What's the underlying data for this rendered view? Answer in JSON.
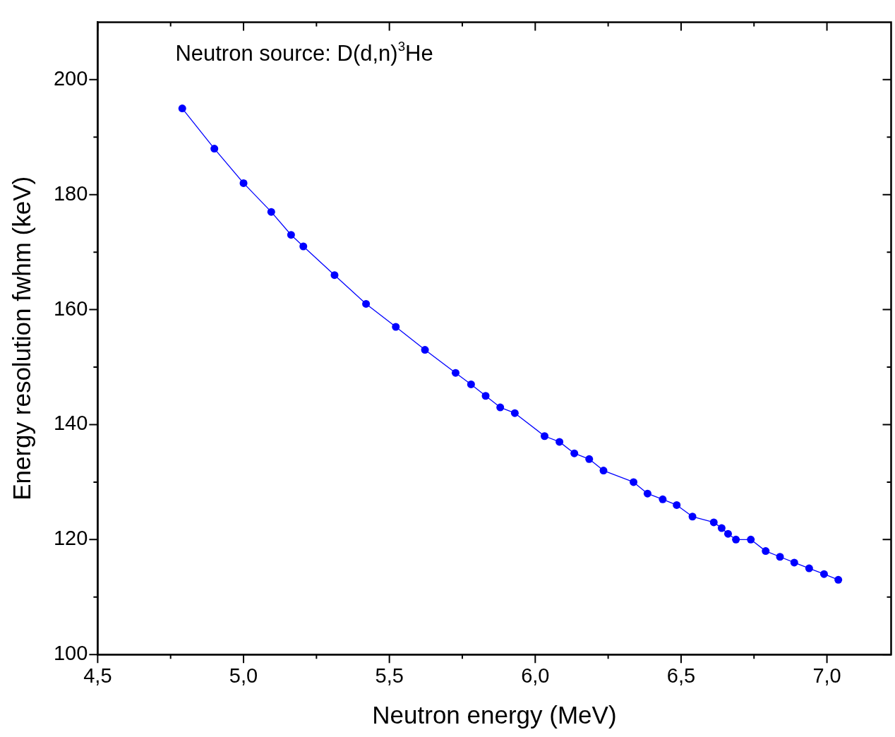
{
  "chart_data": {
    "type": "line",
    "xlabel": "Neutron energy (MeV)",
    "ylabel": "Energy resolution fwhm (keV)",
    "annotations": [
      "Neutron source: D(d,n)$^{3}$He"
    ],
    "xlim": [
      4.5,
      7.22
    ],
    "xticks": [
      {
        "value": 4.5,
        "label": "4,5"
      },
      {
        "value": 4.75,
        "label": null
      },
      {
        "value": 5.0,
        "label": "5,0"
      },
      {
        "value": 5.25,
        "label": null
      },
      {
        "value": 5.5,
        "label": "5,5"
      },
      {
        "value": 5.75,
        "label": null
      },
      {
        "value": 6.0,
        "label": "6,0"
      },
      {
        "value": 6.25,
        "label": null
      },
      {
        "value": 6.5,
        "label": "6,5"
      },
      {
        "value": 6.75,
        "label": null
      },
      {
        "value": 7.0,
        "label": "7,0"
      }
    ],
    "ylim": [
      100,
      210
    ],
    "yticks": [
      100,
      {
        "value": 110,
        "label": null
      },
      120,
      {
        "value": 130,
        "label": null
      },
      140,
      {
        "value": 150,
        "label": null
      },
      160,
      {
        "value": 170,
        "label": null
      },
      180,
      {
        "value": 190,
        "label": null
      },
      200
    ],
    "grid": false,
    "legend": false,
    "marker": "circle",
    "line_style": "solid",
    "series": [
      {
        "color": "#0000ff",
        "x": [
          4.79,
          4.9,
          5.0,
          5.095,
          5.163,
          5.205,
          5.312,
          5.42,
          5.522,
          5.622,
          5.727,
          5.78,
          5.83,
          5.88,
          5.93,
          6.032,
          6.083,
          6.134,
          6.185,
          6.234,
          6.337,
          6.385,
          6.437,
          6.485,
          6.539,
          6.612,
          6.639,
          6.661,
          6.688,
          6.739,
          6.79,
          6.839,
          6.888,
          6.939,
          6.99,
          7.039
        ],
        "values": [
          195,
          188,
          182,
          177,
          173,
          171,
          166,
          161,
          157,
          153,
          149,
          147,
          145,
          143,
          142,
          138,
          137,
          135,
          134,
          132,
          130,
          128,
          127,
          126,
          124,
          123,
          122,
          121,
          120,
          120,
          118,
          117,
          116,
          115,
          114,
          113
        ]
      }
    ]
  }
}
